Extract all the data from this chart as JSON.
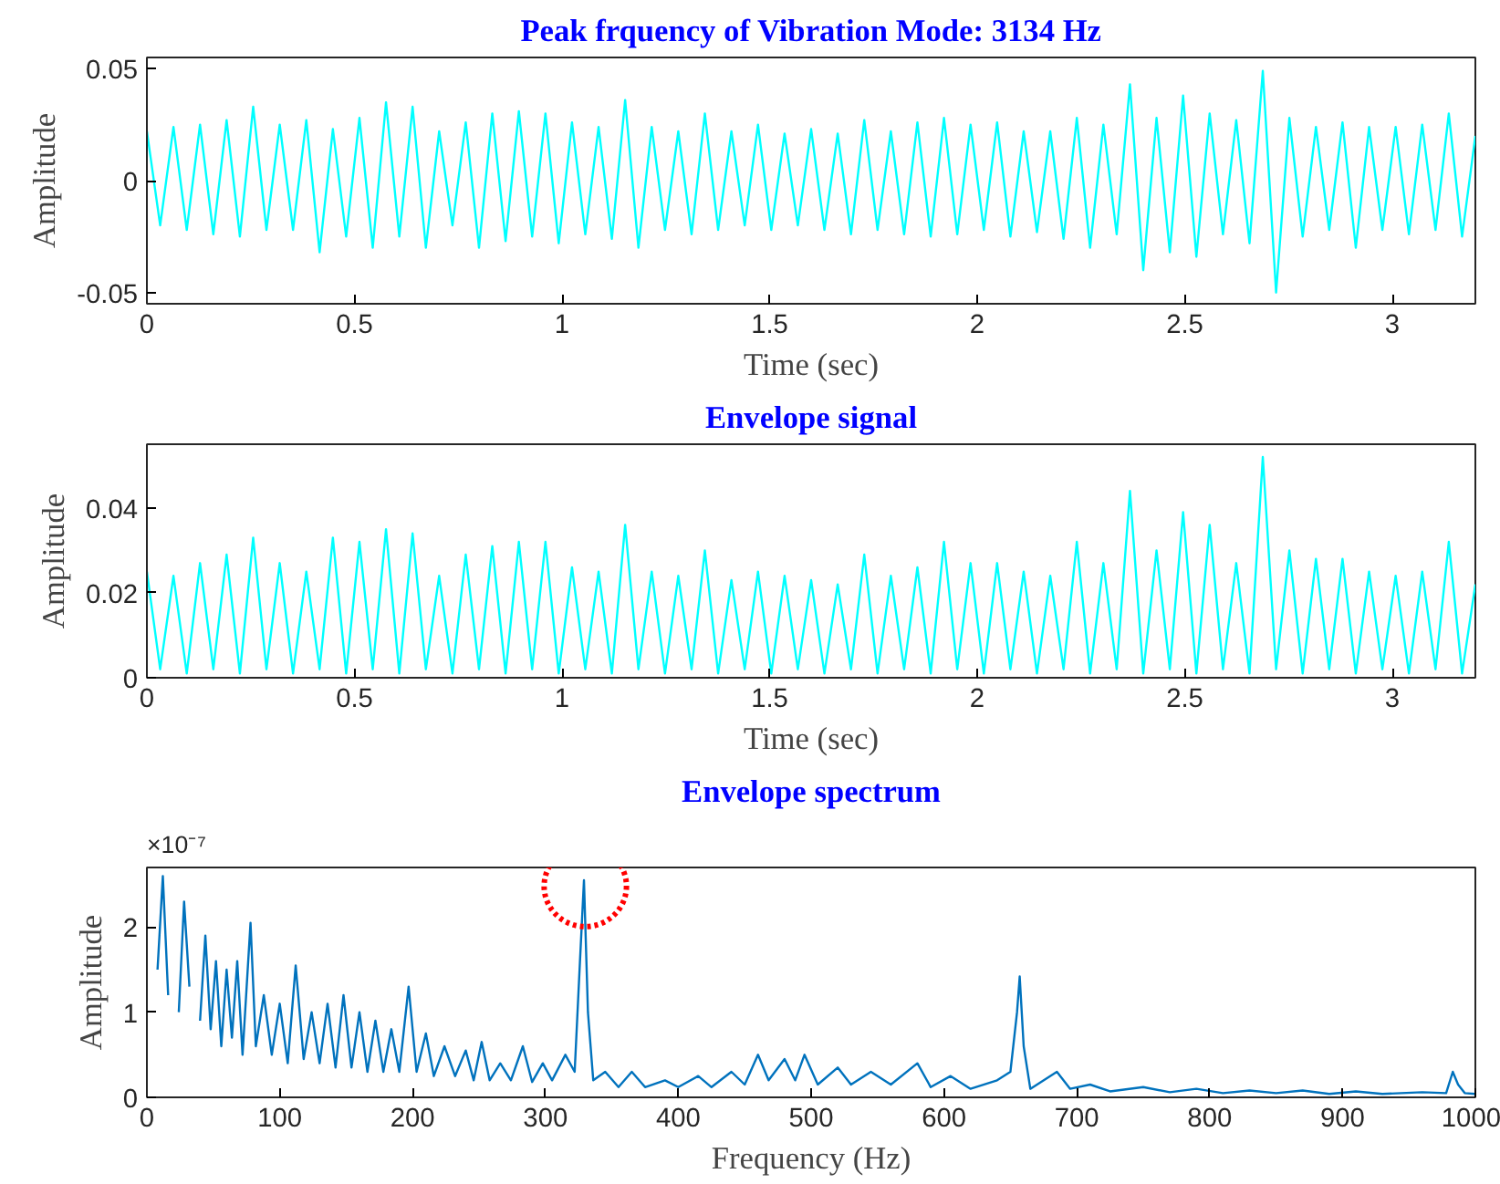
{
  "chart_data": [
    {
      "type": "line",
      "title": "Peak frquency of Vibration Mode: 3134 Hz",
      "xlabel": "Time (sec)",
      "ylabel": "Amplitude",
      "grid": false,
      "xlim": [
        0,
        3.2
      ],
      "xticks": [
        0,
        0.5,
        1,
        1.5,
        2,
        2.5,
        3
      ],
      "ylim": [
        -0.055,
        0.055
      ],
      "yticks": [
        -0.05,
        0,
        0.05
      ],
      "series": [
        {
          "color": "#00ffff",
          "x": [
            0,
            0.032,
            0.064,
            0.096,
            0.128,
            0.16,
            0.192,
            0.224,
            0.256,
            0.288,
            0.32,
            0.352,
            0.384,
            0.416,
            0.448,
            0.48,
            0.512,
            0.544,
            0.576,
            0.608,
            0.64,
            0.672,
            0.704,
            0.736,
            0.768,
            0.8,
            0.832,
            0.864,
            0.896,
            0.928,
            0.96,
            0.992,
            1.024,
            1.056,
            1.088,
            1.12,
            1.152,
            1.184,
            1.216,
            1.248,
            1.28,
            1.312,
            1.344,
            1.376,
            1.408,
            1.44,
            1.472,
            1.504,
            1.536,
            1.568,
            1.6,
            1.632,
            1.664,
            1.696,
            1.728,
            1.76,
            1.792,
            1.824,
            1.856,
            1.888,
            1.92,
            1.952,
            1.984,
            2.016,
            2.048,
            2.08,
            2.112,
            2.144,
            2.176,
            2.208,
            2.24,
            2.272,
            2.304,
            2.336,
            2.368,
            2.4,
            2.432,
            2.464,
            2.496,
            2.528,
            2.56,
            2.592,
            2.624,
            2.656,
            2.688,
            2.72,
            2.752,
            2.784,
            2.816,
            2.848,
            2.88,
            2.912,
            2.944,
            2.976,
            3.008,
            3.04,
            3.072,
            3.104,
            3.136,
            3.168,
            3.2
          ],
          "values": [
            0.022,
            -0.02,
            0.024,
            -0.022,
            0.025,
            -0.024,
            0.027,
            -0.025,
            0.033,
            -0.022,
            0.025,
            -0.022,
            0.027,
            -0.032,
            0.023,
            -0.025,
            0.028,
            -0.03,
            0.035,
            -0.025,
            0.033,
            -0.03,
            0.022,
            -0.02,
            0.026,
            -0.03,
            0.03,
            -0.027,
            0.031,
            -0.025,
            0.03,
            -0.028,
            0.026,
            -0.024,
            0.024,
            -0.026,
            0.036,
            -0.03,
            0.024,
            -0.022,
            0.022,
            -0.024,
            0.03,
            -0.022,
            0.022,
            -0.02,
            0.025,
            -0.022,
            0.021,
            -0.02,
            0.023,
            -0.022,
            0.021,
            -0.024,
            0.027,
            -0.022,
            0.022,
            -0.024,
            0.026,
            -0.025,
            0.028,
            -0.024,
            0.025,
            -0.022,
            0.026,
            -0.025,
            0.022,
            -0.023,
            0.022,
            -0.026,
            0.028,
            -0.03,
            0.025,
            -0.024,
            0.043,
            -0.04,
            0.028,
            -0.032,
            0.038,
            -0.034,
            0.03,
            -0.024,
            0.027,
            -0.028,
            0.049,
            -0.05,
            0.028,
            -0.025,
            0.024,
            -0.022,
            0.026,
            -0.03,
            0.024,
            -0.022,
            0.024,
            -0.024,
            0.025,
            -0.022,
            0.03,
            -0.025,
            0.02
          ]
        }
      ]
    },
    {
      "type": "line",
      "title": "Envelope signal",
      "xlabel": "Time (sec)",
      "ylabel": "Amplitude",
      "grid": false,
      "xlim": [
        0,
        3.2
      ],
      "xticks": [
        0,
        0.5,
        1,
        1.5,
        2,
        2.5,
        3
      ],
      "ylim": [
        0,
        0.055
      ],
      "yticks": [
        0,
        0.02,
        0.04
      ],
      "series": [
        {
          "color": "#00ffff",
          "x": [
            0,
            0.032,
            0.064,
            0.096,
            0.128,
            0.16,
            0.192,
            0.224,
            0.256,
            0.288,
            0.32,
            0.352,
            0.384,
            0.416,
            0.448,
            0.48,
            0.512,
            0.544,
            0.576,
            0.608,
            0.64,
            0.672,
            0.704,
            0.736,
            0.768,
            0.8,
            0.832,
            0.864,
            0.896,
            0.928,
            0.96,
            0.992,
            1.024,
            1.056,
            1.088,
            1.12,
            1.152,
            1.184,
            1.216,
            1.248,
            1.28,
            1.312,
            1.344,
            1.376,
            1.408,
            1.44,
            1.472,
            1.504,
            1.536,
            1.568,
            1.6,
            1.632,
            1.664,
            1.696,
            1.728,
            1.76,
            1.792,
            1.824,
            1.856,
            1.888,
            1.92,
            1.952,
            1.984,
            2.016,
            2.048,
            2.08,
            2.112,
            2.144,
            2.176,
            2.208,
            2.24,
            2.272,
            2.304,
            2.336,
            2.368,
            2.4,
            2.432,
            2.464,
            2.496,
            2.528,
            2.56,
            2.592,
            2.624,
            2.656,
            2.688,
            2.72,
            2.752,
            2.784,
            2.816,
            2.848,
            2.88,
            2.912,
            2.944,
            2.976,
            3.008,
            3.04,
            3.072,
            3.104,
            3.136,
            3.168,
            3.2
          ],
          "values": [
            0.025,
            0.002,
            0.024,
            0.001,
            0.027,
            0.002,
            0.029,
            0.001,
            0.033,
            0.002,
            0.027,
            0.001,
            0.025,
            0.002,
            0.033,
            0.001,
            0.032,
            0.002,
            0.035,
            0.001,
            0.034,
            0.002,
            0.024,
            0.001,
            0.029,
            0.002,
            0.031,
            0.001,
            0.032,
            0.002,
            0.032,
            0.001,
            0.026,
            0.002,
            0.025,
            0.001,
            0.036,
            0.002,
            0.025,
            0.001,
            0.024,
            0.002,
            0.03,
            0.001,
            0.023,
            0.002,
            0.025,
            0.001,
            0.024,
            0.002,
            0.023,
            0.001,
            0.022,
            0.002,
            0.029,
            0.001,
            0.024,
            0.002,
            0.026,
            0.001,
            0.032,
            0.002,
            0.027,
            0.001,
            0.027,
            0.002,
            0.025,
            0.001,
            0.024,
            0.002,
            0.032,
            0.001,
            0.027,
            0.002,
            0.044,
            0.001,
            0.03,
            0.002,
            0.039,
            0.001,
            0.036,
            0.002,
            0.027,
            0.001,
            0.052,
            0.002,
            0.03,
            0.001,
            0.028,
            0.002,
            0.028,
            0.001,
            0.025,
            0.002,
            0.024,
            0.001,
            0.025,
            0.002,
            0.032,
            0.001,
            0.022
          ]
        }
      ]
    },
    {
      "type": "line",
      "title": "Envelope spectrum",
      "xlabel": "Frequency (Hz)",
      "ylabel": "Amplitude",
      "grid": false,
      "annotations": [
        "×10⁻⁷"
      ],
      "xlim": [
        0,
        1000
      ],
      "xticks": [
        0,
        100,
        200,
        300,
        400,
        500,
        600,
        700,
        800,
        900,
        1000
      ],
      "ylim": [
        0,
        2.7
      ],
      "yticks": [
        0,
        1,
        2
      ],
      "series": [
        {
          "color": "#0072bd",
          "x": [
            8,
            12,
            16,
            20,
            24,
            28,
            32,
            36,
            40,
            44,
            48,
            52,
            56,
            60,
            64,
            68,
            72,
            78,
            82,
            88,
            94,
            100,
            106,
            112,
            118,
            124,
            130,
            136,
            142,
            148,
            154,
            160,
            166,
            172,
            178,
            184,
            190,
            197,
            203,
            210,
            216,
            224,
            232,
            240,
            246,
            252,
            258,
            266,
            274,
            283,
            290,
            298,
            305,
            315,
            322,
            326,
            329,
            332,
            336,
            345,
            355,
            365,
            375,
            390,
            400,
            415,
            425,
            440,
            450,
            460,
            468,
            480,
            488,
            495,
            505,
            520,
            530,
            545,
            560,
            580,
            590,
            605,
            620,
            640,
            650,
            655,
            657,
            660,
            665,
            685,
            695,
            710,
            725,
            750,
            770,
            790,
            810,
            830,
            850,
            870,
            890,
            910,
            930,
            960,
            978,
            983,
            987,
            992,
            1000
          ],
          "values": [
            1.5,
            2.6,
            1.2,
            null,
            1.0,
            2.3,
            1.3,
            null,
            0.9,
            1.9,
            0.8,
            1.6,
            0.6,
            1.5,
            0.7,
            1.6,
            0.5,
            2.05,
            0.6,
            1.2,
            0.5,
            1.1,
            0.4,
            1.55,
            0.45,
            1.0,
            0.4,
            1.1,
            0.35,
            1.2,
            0.35,
            1.0,
            0.3,
            0.9,
            0.3,
            0.8,
            0.3,
            1.3,
            0.3,
            0.75,
            0.25,
            0.6,
            0.25,
            0.55,
            0.2,
            0.65,
            0.2,
            0.4,
            0.2,
            0.6,
            0.18,
            0.4,
            0.2,
            0.5,
            0.3,
            1.6,
            2.55,
            1.0,
            0.2,
            0.3,
            0.12,
            0.3,
            0.12,
            0.2,
            0.12,
            0.25,
            0.12,
            0.3,
            0.15,
            0.5,
            0.2,
            0.45,
            0.2,
            0.5,
            0.15,
            0.35,
            0.15,
            0.3,
            0.15,
            0.4,
            0.12,
            0.25,
            0.1,
            0.2,
            0.3,
            1.0,
            1.42,
            0.6,
            0.1,
            0.3,
            0.1,
            0.15,
            0.07,
            0.12,
            0.06,
            0.1,
            0.05,
            0.08,
            0.05,
            0.08,
            0.04,
            0.07,
            0.04,
            0.06,
            0.05,
            0.3,
            0.15,
            0.05,
            0.04
          ]
        }
      ]
    }
  ]
}
